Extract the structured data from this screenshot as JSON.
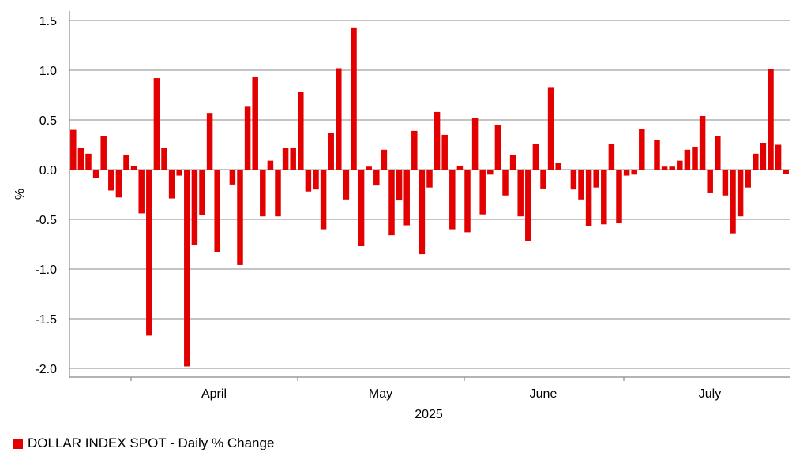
{
  "chart_data": {
    "type": "bar",
    "ylabel": "%",
    "xlabel": "2025",
    "ylim": [
      -2.0,
      1.5
    ],
    "yticks": [
      1.5,
      1.0,
      0.5,
      0.0,
      -0.5,
      -1.0,
      -1.5,
      -2.0
    ],
    "ytick_labels": [
      "1.5",
      "1.0",
      "0.5",
      "0.0",
      "-0.5",
      "-1.0",
      "-1.5",
      "-2.0"
    ],
    "grid": true,
    "month_labels": [
      "April",
      "May",
      "June",
      "July"
    ],
    "legend_position": "bottom-left",
    "series": [
      {
        "name": "DOLLAR INDEX SPOT - Daily % Change",
        "color": "#e30000",
        "values": [
          0.4,
          0.22,
          0.16,
          -0.08,
          0.34,
          -0.21,
          -0.28,
          0.15,
          0.04,
          -0.44,
          -1.67,
          0.92,
          0.22,
          -0.29,
          -0.06,
          -1.98,
          -0.76,
          -0.46,
          0.57,
          -0.83,
          0.0,
          -0.15,
          -0.96,
          0.64,
          0.93,
          -0.47,
          0.09,
          -0.47,
          0.22,
          0.22,
          0.78,
          -0.22,
          -0.2,
          -0.6,
          0.37,
          1.02,
          -0.3,
          1.43,
          -0.77,
          0.03,
          -0.16,
          0.2,
          -0.66,
          -0.31,
          -0.56,
          0.39,
          -0.85,
          -0.18,
          0.58,
          0.35,
          -0.6,
          0.04,
          -0.63,
          0.52,
          -0.45,
          -0.05,
          0.45,
          -0.26,
          0.15,
          -0.47,
          -0.72,
          0.26,
          -0.19,
          0.83,
          0.07,
          0.0,
          -0.2,
          -0.3,
          -0.57,
          -0.18,
          -0.55,
          0.26,
          -0.54,
          -0.06,
          -0.05,
          0.41,
          0.0,
          0.3,
          0.03,
          0.03,
          0.09,
          0.2,
          0.23,
          0.54,
          -0.23,
          0.34,
          -0.26,
          -0.64,
          -0.47,
          -0.18,
          0.16,
          0.27,
          1.01,
          0.25,
          -0.04
        ]
      }
    ]
  }
}
